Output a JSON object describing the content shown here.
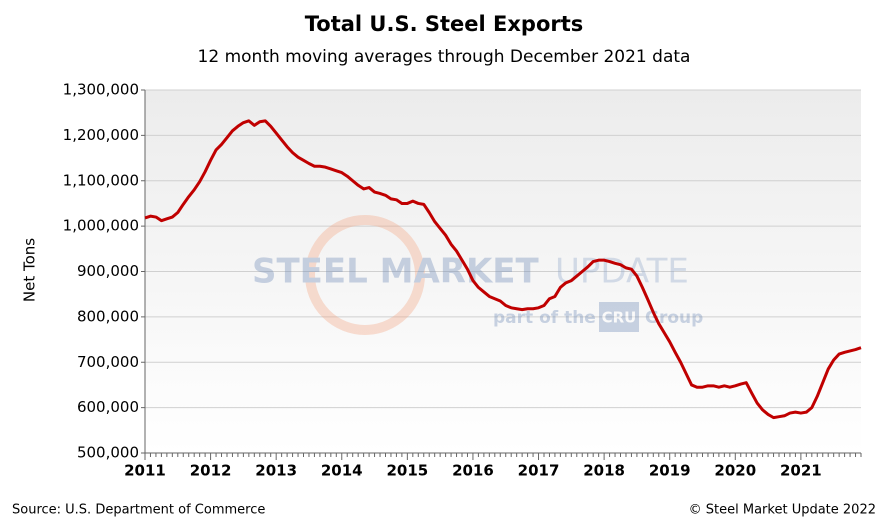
{
  "chart_data": {
    "type": "line",
    "title": "Total U.S. Steel Exports",
    "subtitle": "12 month moving averages through December  2021 data",
    "y_label": "Net Tons",
    "source": "Source: U.S. Department of Commerce",
    "copyright": "© Steel Market Update 2022",
    "watermark": [
      "STEEL MARKET",
      "UPDATE",
      "part of the",
      "CRU",
      "Group"
    ],
    "categories": [
      "2011",
      null,
      null,
      null,
      null,
      null,
      null,
      null,
      null,
      null,
      null,
      null,
      "2012",
      null,
      null,
      null,
      null,
      null,
      null,
      null,
      null,
      null,
      null,
      null,
      "2013",
      null,
      null,
      null,
      null,
      null,
      null,
      null,
      null,
      null,
      null,
      null,
      "2014",
      null,
      null,
      null,
      null,
      null,
      null,
      null,
      null,
      null,
      null,
      null,
      "2015",
      null,
      null,
      null,
      null,
      null,
      null,
      null,
      null,
      null,
      null,
      null,
      "2016",
      null,
      null,
      null,
      null,
      null,
      null,
      null,
      null,
      null,
      null,
      null,
      "2017",
      null,
      null,
      null,
      null,
      null,
      null,
      null,
      null,
      null,
      null,
      null,
      "2018",
      null,
      null,
      null,
      null,
      null,
      null,
      null,
      null,
      null,
      null,
      null,
      "2019",
      null,
      null,
      null,
      null,
      null,
      null,
      null,
      null,
      null,
      null,
      null,
      "2020",
      null,
      null,
      null,
      null,
      null,
      null,
      null,
      null,
      null,
      null,
      null,
      "2021",
      null,
      null,
      null,
      null,
      null,
      null,
      null,
      null,
      null,
      null,
      null
    ],
    "series": [
      {
        "name": "Total U.S. Steel Exports",
        "color": "#c00000",
        "values": [
          1018000,
          1022000,
          1020000,
          1012000,
          1016000,
          1020000,
          1030000,
          1048000,
          1065000,
          1080000,
          1098000,
          1120000,
          1145000,
          1168000,
          1180000,
          1195000,
          1210000,
          1220000,
          1228000,
          1232000,
          1222000,
          1230000,
          1232000,
          1220000,
          1205000,
          1190000,
          1175000,
          1162000,
          1152000,
          1145000,
          1138000,
          1132000,
          1132000,
          1130000,
          1126000,
          1122000,
          1118000,
          1110000,
          1100000,
          1090000,
          1082000,
          1085000,
          1075000,
          1072000,
          1068000,
          1060000,
          1058000,
          1050000,
          1050000,
          1055000,
          1050000,
          1048000,
          1030000,
          1010000,
          995000,
          980000,
          960000,
          945000,
          925000,
          905000,
          880000,
          865000,
          855000,
          845000,
          840000,
          835000,
          825000,
          820000,
          818000,
          816000,
          818000,
          818000,
          820000,
          825000,
          840000,
          845000,
          865000,
          875000,
          880000,
          890000,
          900000,
          910000,
          922000,
          925000,
          925000,
          922000,
          918000,
          915000,
          908000,
          905000,
          890000,
          865000,
          838000,
          810000,
          785000,
          765000,
          745000,
          722000,
          700000,
          675000,
          650000,
          645000,
          645000,
          648000,
          648000,
          645000,
          648000,
          645000,
          648000,
          652000,
          655000,
          632000,
          610000,
          595000,
          585000,
          578000,
          580000,
          582000,
          588000,
          590000,
          588000,
          590000,
          600000,
          625000,
          655000,
          685000,
          705000,
          718000,
          722000,
          725000,
          728000,
          732000
        ]
      }
    ],
    "ylim": [
      500000,
      1300000
    ],
    "yticks": [
      {
        "value": 500000,
        "label": "500,000"
      },
      {
        "value": 600000,
        "label": "600,000"
      },
      {
        "value": 700000,
        "label": "700,000"
      },
      {
        "value": 800000,
        "label": "800,000"
      },
      {
        "value": 900000,
        "label": "900,000"
      },
      {
        "value": 1000000,
        "label": "1,000,000"
      },
      {
        "value": 1100000,
        "label": "1,100,000"
      },
      {
        "value": 1200000,
        "label": "1,200,000"
      },
      {
        "value": 1300000,
        "label": "1,300,000"
      }
    ],
    "grid": true
  }
}
